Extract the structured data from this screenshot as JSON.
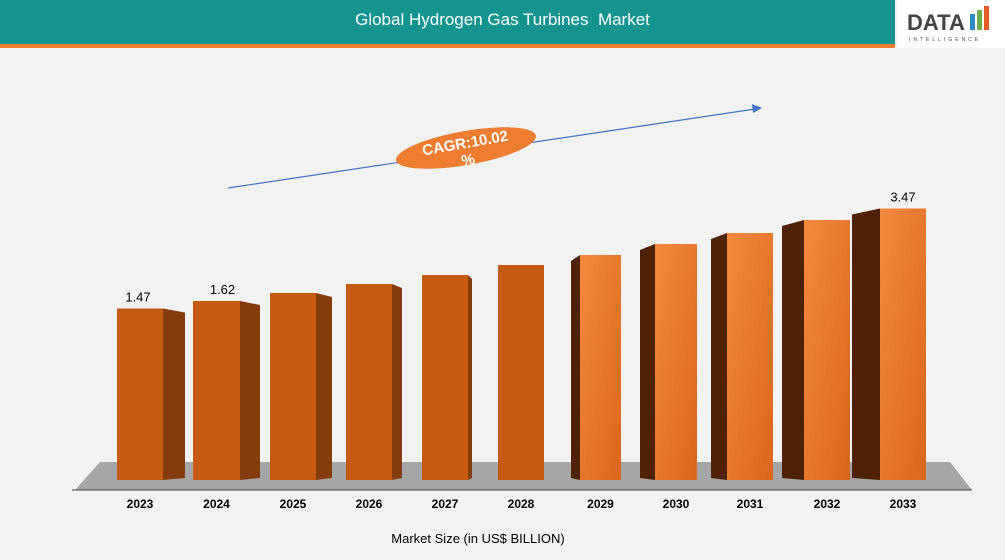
{
  "header": {
    "title": "Global Hydrogen Gas Turbines  Market",
    "logo_text": "DATA",
    "logo_subtext": "INTELLIGENCE"
  },
  "colors": {
    "header": "#14938f",
    "accent": "#ed7d31",
    "bar_front": "#c55a11",
    "bar_side": "#843c0c"
  },
  "chart_data": {
    "type": "bar",
    "title": "",
    "xlabel": "Market Size (in US$ BILLION)",
    "ylabel": "",
    "categories": [
      "2023",
      "2024",
      "2025",
      "2026",
      "2027",
      "2028",
      "2029",
      "2030",
      "2031",
      "2032",
      "2033"
    ],
    "values": [
      1.47,
      1.62,
      1.78,
      1.96,
      2.14,
      2.34,
      2.54,
      2.76,
      2.98,
      3.24,
      3.47
    ],
    "data_labels": {
      "0": "1.47",
      "1": "1.62",
      "10": "3.47"
    },
    "annotation": "CAGR:10.02 %",
    "grid": false
  }
}
